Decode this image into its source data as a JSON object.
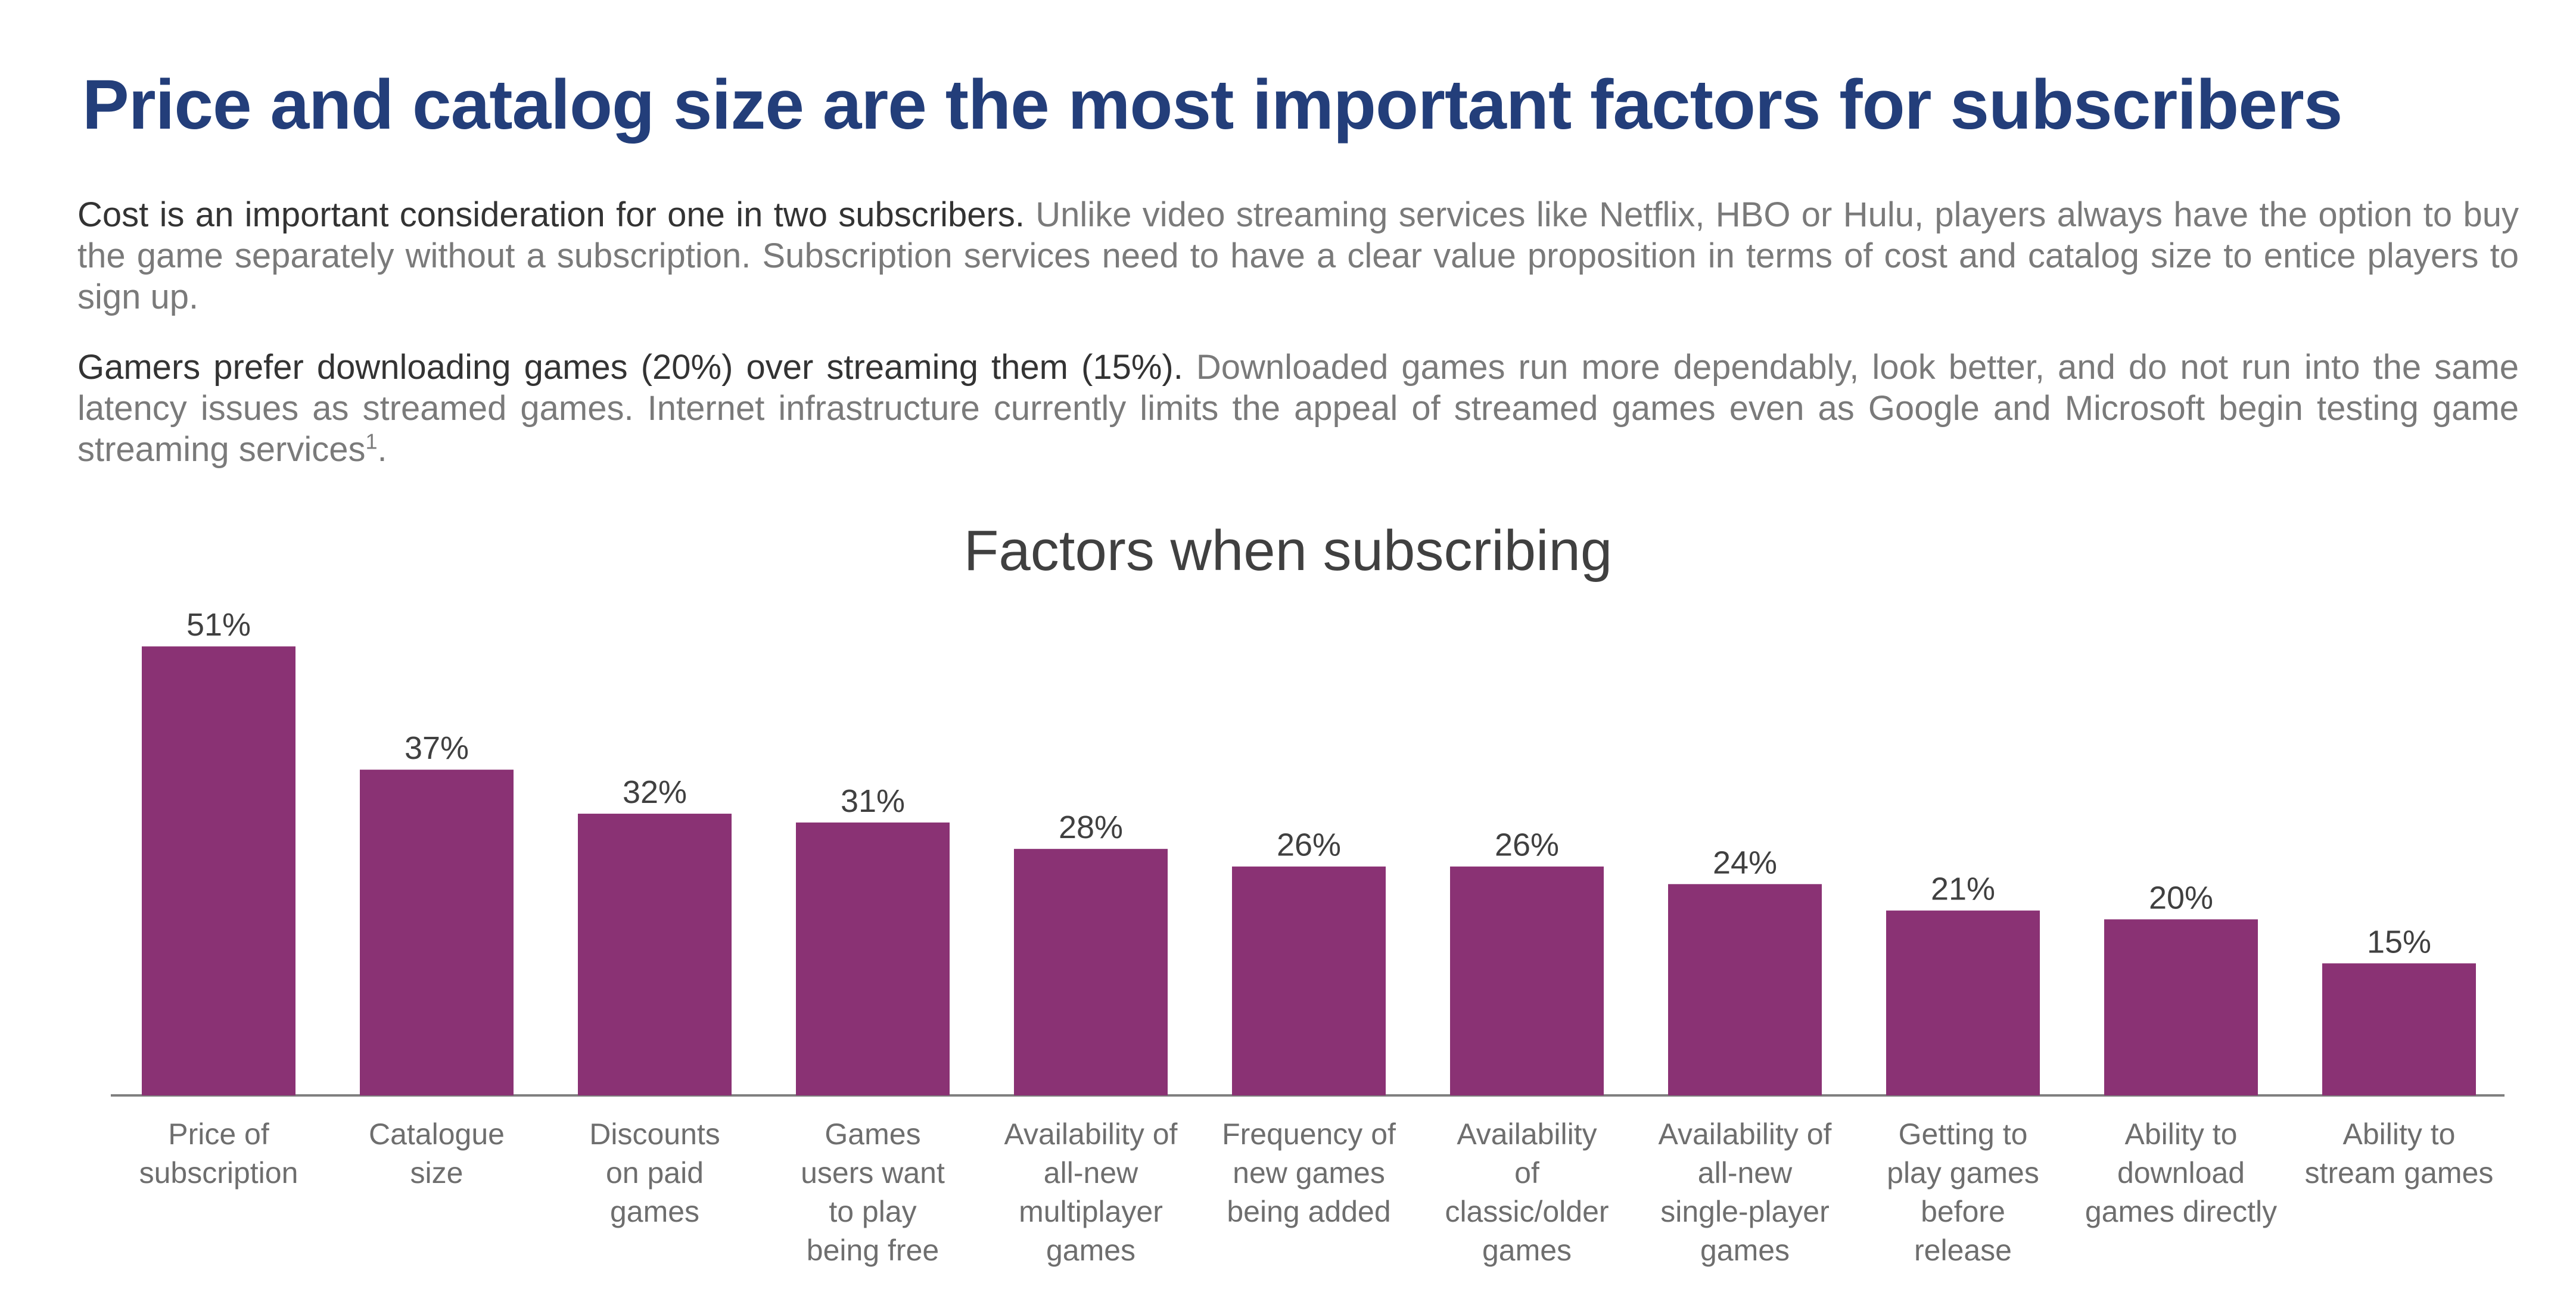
{
  "header": {
    "title": "Price and catalog size are the most important factors for subscribers"
  },
  "paragraphs": [
    {
      "lead": "Cost is an important consideration for one in two subscribers.",
      "body": " Unlike video streaming services like Netflix, HBO or Hulu, players always have the option to buy the game separately without a subscription. Subscription services need to have a clear value proposition in terms of cost and catalog size to entice players to sign up.",
      "footnote": "",
      "tail": ""
    },
    {
      "lead": "Gamers prefer downloading games (20%) over streaming them (15%).",
      "body": " Downloaded games run more dependably, look better, and do not run into the same latency issues as streamed games. Internet infrastructure currently limits the appeal of streamed games even as Google and Microsoft begin testing game streaming services",
      "footnote": "1",
      "tail": "."
    }
  ],
  "colors": {
    "bar": "#8a3274",
    "axis": "#7f7f7f",
    "value_label": "#404040"
  },
  "chart_data": {
    "type": "bar",
    "title": "Factors when subscribing",
    "xlabel": "",
    "ylabel": "",
    "ylim": [
      0,
      55
    ],
    "grid": false,
    "value_suffix": "%",
    "categories": [
      "Price of\nsubscription",
      "Catalogue\nsize",
      "Discounts\non paid\ngames",
      "Games\nusers want\nto play\nbeing free",
      "Availability of\nall-new\nmultiplayer\ngames",
      "Frequency of\nnew games\nbeing added",
      "Availability\nof\nclassic/older\ngames",
      "Availability of\nall-new\nsingle-player\ngames",
      "Getting to\nplay games\nbefore\nrelease",
      "Ability to\ndownload\ngames directly",
      "Ability to\nstream games"
    ],
    "values": [
      51,
      37,
      32,
      31,
      28,
      26,
      26,
      24,
      21,
      20,
      15
    ]
  }
}
